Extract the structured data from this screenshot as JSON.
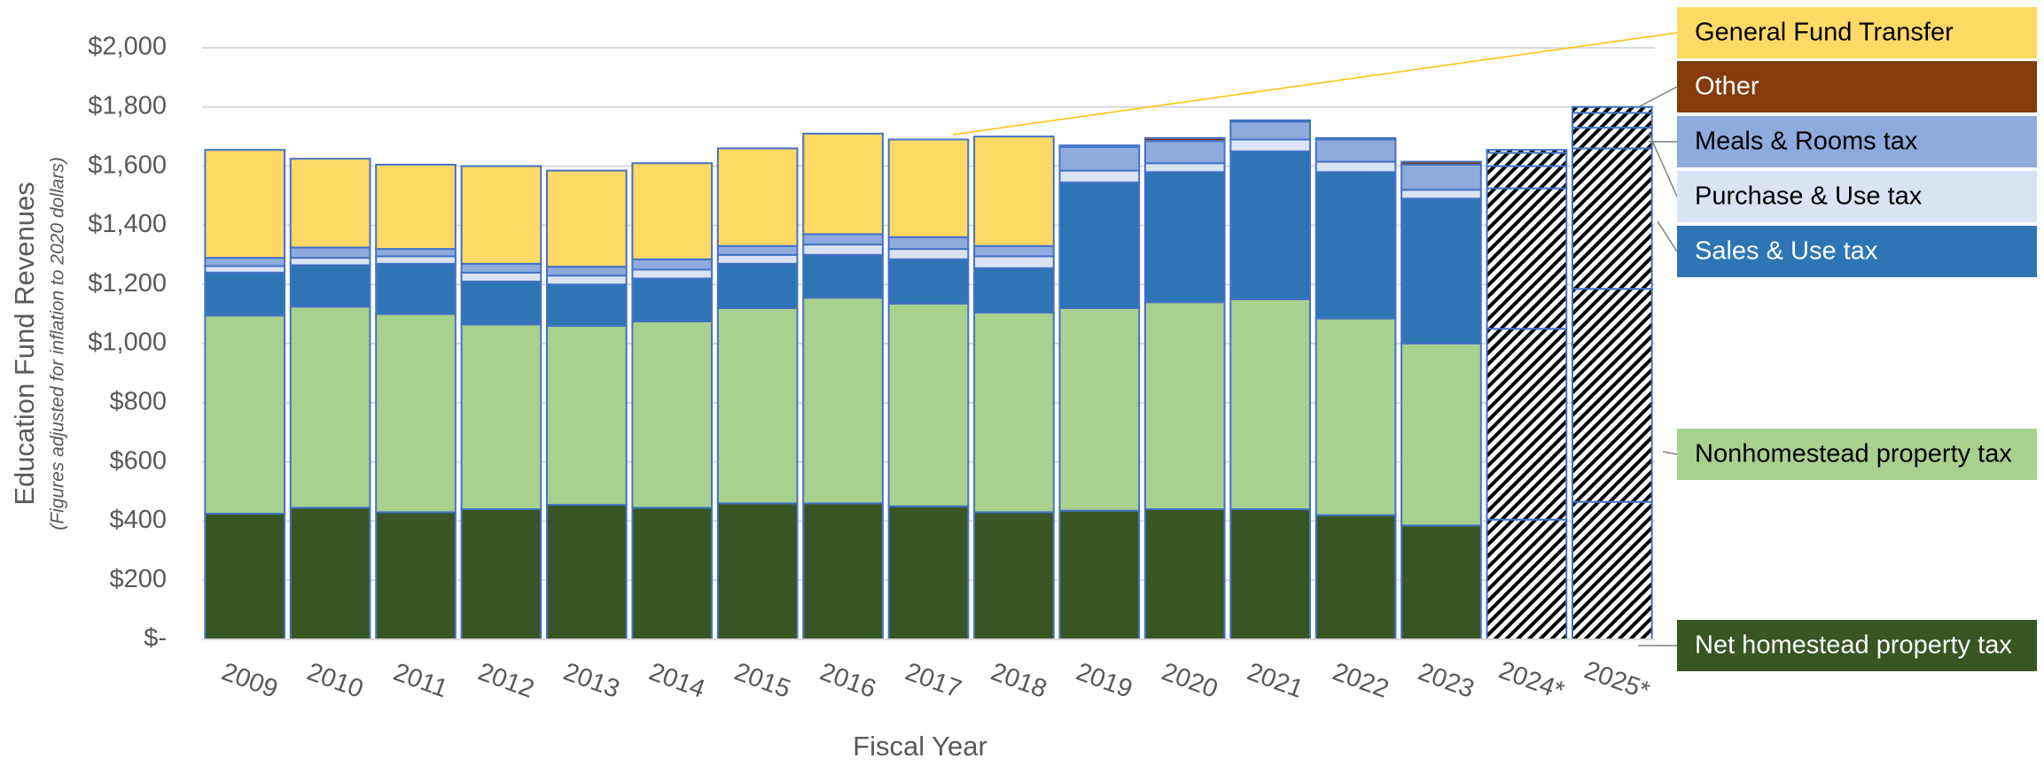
{
  "chart_data": {
    "type": "stacked_bar",
    "y_label": "Education Fund Revenues",
    "y_sublabel": "(Figures adjusted for inflation to 2020 dollars)",
    "x_label": "Fiscal Year",
    "categories": [
      "2009",
      "2010",
      "2011",
      "2012",
      "2013",
      "2014",
      "2015",
      "2016",
      "2017",
      "2018",
      "2019",
      "2020",
      "2021",
      "2022",
      "2023",
      "2024*",
      "2025*"
    ],
    "hatched": [
      false,
      false,
      false,
      false,
      false,
      false,
      false,
      false,
      false,
      false,
      false,
      false,
      false,
      false,
      false,
      true,
      true
    ],
    "series": [
      {
        "name": "Net homestead property tax",
        "color": "#375623",
        "values": [
          425,
          445,
          430,
          440,
          455,
          445,
          460,
          460,
          450,
          430,
          435,
          440,
          440,
          420,
          385,
          405,
          465
        ]
      },
      {
        "name": "Nonhomestead property tax",
        "color": "#a9d18e",
        "values": [
          670,
          680,
          670,
          625,
          605,
          630,
          660,
          695,
          685,
          675,
          685,
          700,
          710,
          665,
          615,
          645,
          720
        ]
      },
      {
        "name": "Sales & Use tax",
        "color": "#2e75b6",
        "values": [
          145,
          140,
          170,
          145,
          140,
          145,
          150,
          145,
          150,
          150,
          425,
          440,
          500,
          495,
          490,
          475,
          475
        ]
      },
      {
        "name": "Purchase & Use tax",
        "color": "#dae3f3",
        "values": [
          22,
          25,
          25,
          30,
          30,
          30,
          30,
          35,
          35,
          40,
          40,
          30,
          40,
          35,
          30,
          75,
          70
        ]
      },
      {
        "name": "Meals & Rooms tax",
        "color": "#8faadc",
        "values": [
          28,
          35,
          25,
          30,
          30,
          35,
          30,
          35,
          40,
          35,
          80,
          75,
          60,
          75,
          85,
          45,
          50
        ]
      },
      {
        "name": "Other",
        "color": "#843c0c",
        "values": [
          0,
          0,
          0,
          0,
          0,
          0,
          0,
          0,
          0,
          0,
          5,
          10,
          5,
          5,
          10,
          10,
          20
        ]
      },
      {
        "name": "General Fund Transfer",
        "color": "#ffd966",
        "values": [
          365,
          300,
          285,
          330,
          325,
          325,
          330,
          340,
          330,
          370,
          0,
          0,
          0,
          0,
          0,
          0,
          0
        ]
      }
    ],
    "ylim": [
      0,
      2000
    ],
    "yticks": [
      {
        "value": 0,
        "label": "$-"
      },
      {
        "value": 200,
        "label": "$200"
      },
      {
        "value": 400,
        "label": "$400"
      },
      {
        "value": 600,
        "label": "$600"
      },
      {
        "value": 800,
        "label": "$800"
      },
      {
        "value": 1000,
        "label": "$1,000"
      },
      {
        "value": 1200,
        "label": "$1,200"
      },
      {
        "value": 1400,
        "label": "$1,400"
      },
      {
        "value": 1600,
        "label": "$1,600"
      },
      {
        "value": 1800,
        "label": "$1,800"
      },
      {
        "value": 2000,
        "label": "$2,000"
      }
    ],
    "grid": true
  }
}
